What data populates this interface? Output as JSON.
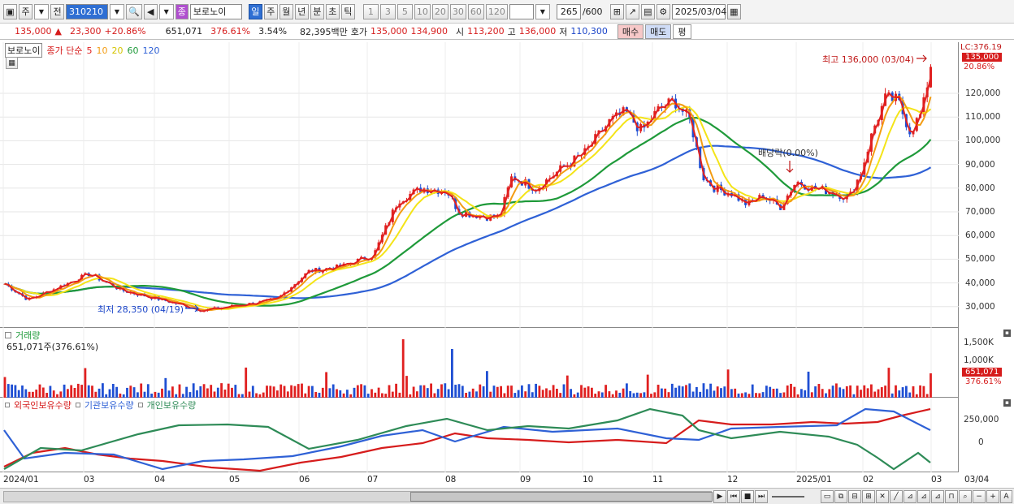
{
  "toolbar": {
    "period_select": "주",
    "prev_label": "전",
    "stock_code": "310210",
    "stock_badge": "종",
    "stock_name": "보로노이",
    "period_tabs": [
      "일",
      "주",
      "월",
      "년",
      "분",
      "초",
      "틱"
    ],
    "interval_buttons": [
      "1",
      "3",
      "5",
      "10",
      "20",
      "30",
      "60",
      "120"
    ],
    "count_value": "265",
    "count_max": "/600",
    "date_value": "2025/03/04"
  },
  "quote": {
    "price": "135,000",
    "change": "23,300",
    "change_pct": "+20.86%",
    "volume": "651,071",
    "volume_ratio": "376.61%",
    "turnover": "3.54%",
    "amount": "82,395백만",
    "ask_label": "호가",
    "ask1": "135,000",
    "ask2": "134,900",
    "open_label": "시",
    "open": "113,200",
    "high_label": "고",
    "high": "136,000",
    "low_label": "저",
    "low": "110,300",
    "buy_label": "매수",
    "sell_label": "매도",
    "eval_label": "평"
  },
  "price_legend": {
    "name": "보로노이",
    "label": "종가 단순",
    "ma": [
      {
        "p": "5",
        "color": "#e02020"
      },
      {
        "p": "10",
        "color": "#f39c12"
      },
      {
        "p": "20",
        "color": "#f4e418"
      },
      {
        "p": "60",
        "color": "#1f9a3a"
      },
      {
        "p": "120",
        "color": "#2f61d6"
      }
    ]
  },
  "annotations": {
    "high_note": "최고 136,000 (03/04)",
    "low_note": "최저 28,350 (04/19)",
    "dividend_note": "배당락(0.00%)"
  },
  "price_axis": {
    "lc_label": "LC:376.19",
    "last_price": "135,000",
    "last_pct": "20.86%",
    "ticks": [
      "120,000",
      "110,000",
      "100,000",
      "90,000",
      "80,000",
      "70,000",
      "60,000",
      "50,000",
      "40,000",
      "30,000"
    ]
  },
  "volume_panel": {
    "title": "거래량",
    "summary": "651,071주(376.61%)",
    "ticks": [
      "1,500K",
      "1,000K"
    ],
    "last_value": "651,071",
    "last_pct": "376.61%"
  },
  "holding_panel": {
    "legend": [
      {
        "label": "외국인보유수량",
        "color": "#d61c1c"
      },
      {
        "label": "기관보유수량",
        "color": "#2f61d6"
      },
      {
        "label": "개인보유수량",
        "color": "#2e8b57"
      }
    ],
    "ticks": [
      "250,000",
      "0"
    ]
  },
  "x_axis": {
    "labels": [
      "2024/01",
      "03",
      "04",
      "05",
      "06",
      "07",
      "08",
      "09",
      "10",
      "11",
      "12",
      "2025/01",
      "02",
      "03"
    ],
    "right_label": "03/04"
  },
  "colors": {
    "up": "#e02020",
    "down": "#1f4fd3",
    "accent": "#2f6fd3"
  }
}
